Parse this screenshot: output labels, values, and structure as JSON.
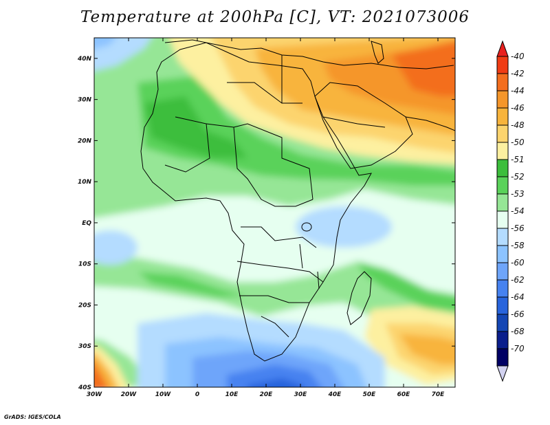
{
  "title": "Temperature at 200hPa [C], VT: 2021073006",
  "credit": "GrADS: IGES/COLA",
  "units": "C",
  "pressure_level": "200hPa",
  "valid_time": "2021073006",
  "map": {
    "lon_range": [
      -30,
      75
    ],
    "lat_range": [
      -40,
      45
    ],
    "lat_ticks": [
      {
        "value": 40,
        "label": "40N"
      },
      {
        "value": 30,
        "label": "30N"
      },
      {
        "value": 20,
        "label": "20N"
      },
      {
        "value": 10,
        "label": "10N"
      },
      {
        "value": 0,
        "label": "EQ"
      },
      {
        "value": -10,
        "label": "10S"
      },
      {
        "value": -20,
        "label": "20S"
      },
      {
        "value": -30,
        "label": "30S"
      },
      {
        "value": -40,
        "label": "40S"
      }
    ],
    "lon_ticks": [
      {
        "value": -30,
        "label": "30W"
      },
      {
        "value": -20,
        "label": "20W"
      },
      {
        "value": -10,
        "label": "10W"
      },
      {
        "value": 0,
        "label": "0"
      },
      {
        "value": 10,
        "label": "10E"
      },
      {
        "value": 20,
        "label": "20E"
      },
      {
        "value": 30,
        "label": "30E"
      },
      {
        "value": 40,
        "label": "40E"
      },
      {
        "value": 50,
        "label": "50E"
      },
      {
        "value": 60,
        "label": "60E"
      },
      {
        "value": 70,
        "label": "70E"
      }
    ]
  },
  "colorbar": {
    "levels": [
      {
        "label": "-40",
        "color": "#f03c14"
      },
      {
        "label": "-42",
        "color": "#f36e1e"
      },
      {
        "label": "-44",
        "color": "#f5962a"
      },
      {
        "label": "-46",
        "color": "#f8b43c"
      },
      {
        "label": "-48",
        "color": "#fcd46e"
      },
      {
        "label": "-50",
        "color": "#fdf0a0"
      },
      {
        "label": "-51",
        "color": "#3cbe3c"
      },
      {
        "label": "-52",
        "color": "#5ad25a"
      },
      {
        "label": "-53",
        "color": "#96e696"
      },
      {
        "label": "-54",
        "color": "#e6fff0"
      },
      {
        "label": "-56",
        "color": "#b4dcff"
      },
      {
        "label": "-58",
        "color": "#8cc3ff"
      },
      {
        "label": "-60",
        "color": "#6ea5fa"
      },
      {
        "label": "-62",
        "color": "#4682f0"
      },
      {
        "label": "-64",
        "color": "#2864dc"
      },
      {
        "label": "-66",
        "color": "#1446b4"
      },
      {
        "label": "-68",
        "color": "#0a1e8c"
      },
      {
        "label": "-70",
        "color": "#000064"
      }
    ],
    "top_triangle_color": "#e8201e",
    "bottom_triangle_color": "#d2d2f0"
  }
}
